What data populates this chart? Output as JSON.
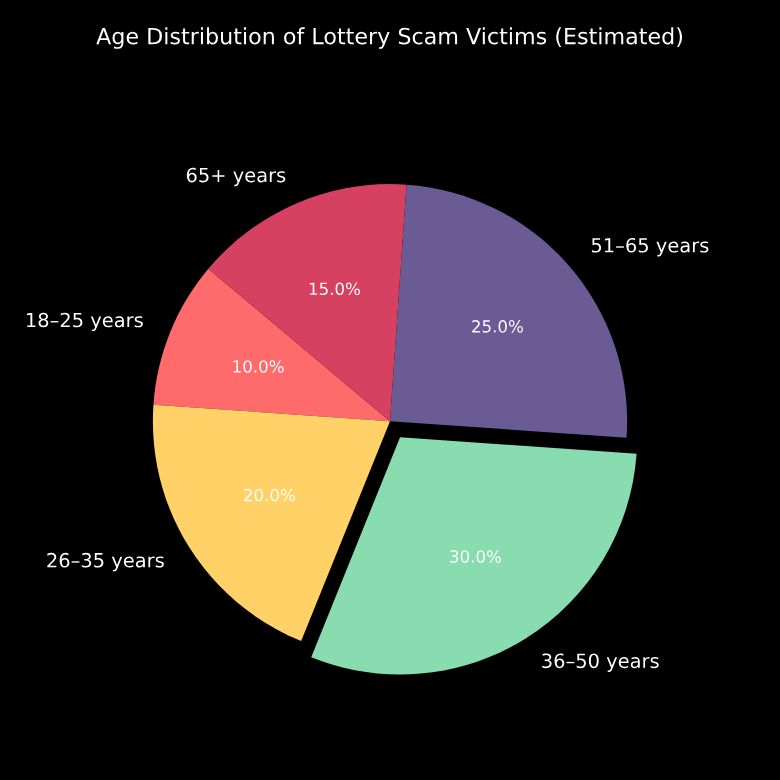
{
  "chart_data": {
    "type": "pie",
    "title": "Age Distribution of Lottery Scam Victims (Estimated)",
    "categories": [
      "18–25 years",
      "26–35 years",
      "36–50 years",
      "51–65 years",
      "65+ years"
    ],
    "values": [
      10,
      20,
      30,
      25,
      15
    ],
    "value_labels": [
      "10.0%",
      "20.0%",
      "30.0%",
      "25.0%",
      "15.0%"
    ],
    "colors": [
      "#ff6b6b",
      "#ffd166",
      "#88dcb0",
      "#6b5b95",
      "#d64161"
    ]
  }
}
